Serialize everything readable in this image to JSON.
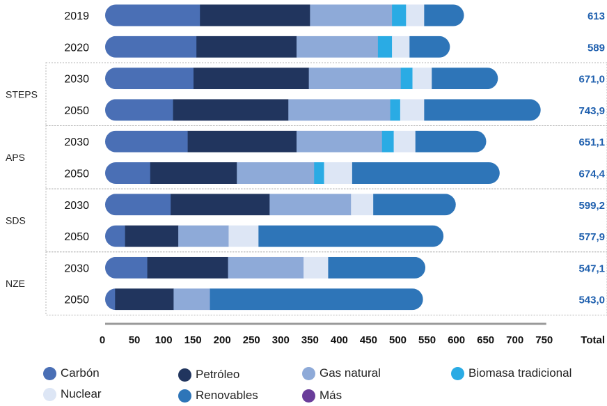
{
  "chart_data": {
    "type": "bar",
    "orientation": "horizontal",
    "stacked": true,
    "categories": [
      {
        "group": "",
        "year": "2019",
        "total": "613"
      },
      {
        "group": "",
        "year": "2020",
        "total": "589"
      },
      {
        "group": "STEPS",
        "year": "2030",
        "total": "671,0"
      },
      {
        "group": "STEPS",
        "year": "2050",
        "total": "743,9"
      },
      {
        "group": "APS",
        "year": "2030",
        "total": "651,1"
      },
      {
        "group": "APS",
        "year": "2050",
        "total": "674,4"
      },
      {
        "group": "SDS",
        "year": "2030",
        "total": "599,2"
      },
      {
        "group": "SDS",
        "year": "2050",
        "total": "577,9"
      },
      {
        "group": "NZE",
        "year": "2030",
        "total": "547,1"
      },
      {
        "group": "NZE",
        "year": "2050",
        "total": "543,0"
      }
    ],
    "groups": [
      "STEPS",
      "APS",
      "SDS",
      "NZE"
    ],
    "series": [
      {
        "name": "Carbón",
        "color": "#4a6fb5",
        "values": [
          162,
          156,
          151,
          116,
          141,
          77,
          112,
          34,
          72,
          17
        ]
      },
      {
        "name": "Petróleo",
        "color": "#21355e",
        "values": [
          188,
          171,
          197,
          197,
          186,
          148,
          169,
          91,
          138,
          100
        ]
      },
      {
        "name": "Gas natural",
        "color": "#8eaad8",
        "values": [
          140,
          139,
          157,
          174,
          146,
          132,
          139,
          86,
          129,
          62
        ]
      },
      {
        "name": "Biomasa tradicional",
        "color": "#2aabe4",
        "values": [
          24,
          24,
          20,
          17,
          20,
          17,
          0,
          0,
          0,
          0
        ]
      },
      {
        "name": "Nuclear",
        "color": "#dde6f5",
        "values": [
          31,
          30,
          33,
          41,
          37,
          48,
          38,
          51,
          42,
          0
        ]
      },
      {
        "name": "Renovables",
        "color": "#2e75b8",
        "values": [
          68,
          69,
          113,
          199,
          121,
          252,
          141,
          316,
          166,
          364
        ]
      },
      {
        "name": "Más",
        "color": "#6a3d9a",
        "values": [
          0,
          0,
          0,
          0,
          0,
          0,
          0,
          0,
          0,
          0
        ]
      }
    ],
    "xlim": [
      0,
      750
    ],
    "xticks": [
      0,
      50,
      100,
      150,
      200,
      250,
      300,
      350,
      400,
      450,
      500,
      550,
      600,
      650,
      700,
      750
    ],
    "total_header": "Total",
    "legend_position": "bottom"
  },
  "legend": {
    "items": [
      {
        "label": "Carbón",
        "color": "#4a6fb5"
      },
      {
        "label": "Petróleo",
        "color": "#21355e"
      },
      {
        "label": "Gas natural",
        "color": "#8eaad8"
      },
      {
        "label": "Biomasa tradicional",
        "color": "#2aabe4"
      },
      {
        "label": "Nuclear",
        "color": "#dde6f5"
      },
      {
        "label": "Renovables",
        "color": "#2e75b8"
      },
      {
        "label": "Más",
        "color": "#6a3d9a"
      }
    ]
  }
}
